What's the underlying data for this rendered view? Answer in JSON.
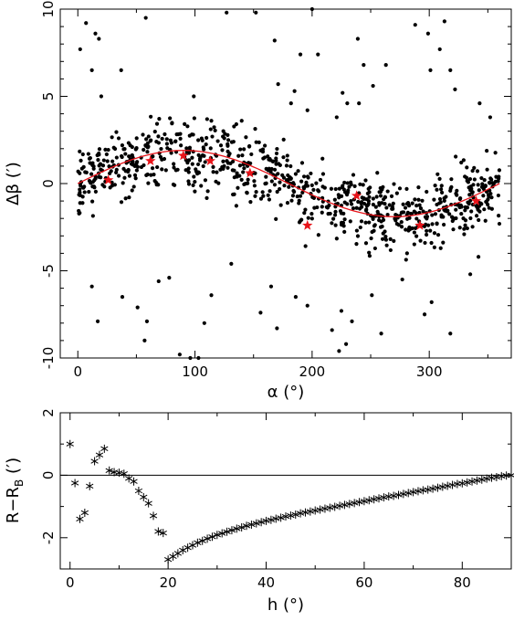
{
  "chart_data": [
    {
      "type": "scatter",
      "title": "",
      "xlabel": "α (°)",
      "ylabel": "Δβ (′)",
      "xlim": [
        -15,
        370
      ],
      "ylim": [
        -10,
        10
      ],
      "xticks": [
        0,
        100,
        200,
        300
      ],
      "yticks": [
        -10,
        -5,
        0,
        5,
        10
      ],
      "grid": false,
      "legend": "none",
      "series": [
        {
          "kind": "scatter-dots",
          "color": "#000000",
          "note_values": "dense cloud of ~900 points following the sine trend with spread",
          "values": [
            [
              2,
              7.7
            ],
            [
              7,
              9.2
            ],
            [
              12,
              6.5
            ],
            [
              15,
              8.6
            ],
            [
              18,
              8.3
            ],
            [
              20,
              5.0
            ],
            [
              37,
              6.5
            ],
            [
              58,
              9.5
            ],
            [
              99,
              5.0
            ],
            [
              127,
              9.8
            ],
            [
              152,
              9.8
            ],
            [
              168,
              8.2
            ],
            [
              171,
              5.7
            ],
            [
              182,
              4.6
            ],
            [
              185,
              5.3
            ],
            [
              190,
              7.4
            ],
            [
              196,
              4.2
            ],
            [
              200,
              10.0
            ],
            [
              205,
              7.4
            ],
            [
              221,
              3.8
            ],
            [
              226,
              5.2
            ],
            [
              230,
              4.6
            ],
            [
              239,
              8.3
            ],
            [
              240,
              4.6
            ],
            [
              244,
              6.8
            ],
            [
              252,
              5.6
            ],
            [
              263,
              6.8
            ],
            [
              288,
              9.1
            ],
            [
              299,
              8.6
            ],
            [
              301,
              6.5
            ],
            [
              309,
              7.7
            ],
            [
              313,
              9.3
            ],
            [
              318,
              6.5
            ],
            [
              322,
              5.4
            ],
            [
              343,
              4.6
            ],
            [
              352,
              3.8
            ],
            [
              12,
              -5.9
            ],
            [
              17,
              -7.9
            ],
            [
              38,
              -6.5
            ],
            [
              51,
              -7.1
            ],
            [
              59,
              -7.9
            ],
            [
              69,
              -5.6
            ],
            [
              78,
              -5.4
            ],
            [
              87,
              -9.8
            ],
            [
              96,
              -10.0
            ],
            [
              108,
              -8.0
            ],
            [
              114,
              -6.4
            ],
            [
              131,
              -4.6
            ],
            [
              156,
              -7.4
            ],
            [
              165,
              -5.9
            ],
            [
              170,
              -8.3
            ],
            [
              186,
              -6.5
            ],
            [
              196,
              -7.0
            ],
            [
              217,
              -8.4
            ],
            [
              223,
              -9.6
            ],
            [
              225,
              -7.3
            ],
            [
              229,
              -9.2
            ],
            [
              234,
              -7.9
            ],
            [
              251,
              -6.4
            ],
            [
              259,
              -8.6
            ],
            [
              277,
              -5.5
            ],
            [
              296,
              -7.5
            ],
            [
              302,
              -6.8
            ],
            [
              318,
              -8.6
            ],
            [
              335,
              -5.2
            ],
            [
              342,
              -4.2
            ],
            [
              103,
              -10.0
            ],
            [
              57,
              -9.0
            ]
          ]
        },
        {
          "kind": "model-curve",
          "color": "#e8141a",
          "amplitude": 1.9,
          "values": [
            [
              0,
              0.0
            ],
            [
              30,
              0.95
            ],
            [
              60,
              1.65
            ],
            [
              90,
              1.9
            ],
            [
              120,
              1.65
            ],
            [
              150,
              0.95
            ],
            [
              180,
              0.0
            ],
            [
              210,
              -0.95
            ],
            [
              240,
              -1.65
            ],
            [
              270,
              -1.9
            ],
            [
              300,
              -1.65
            ],
            [
              330,
              -0.95
            ],
            [
              360,
              0.0
            ]
          ]
        },
        {
          "kind": "red-stars",
          "color": "#e8141a",
          "values": [
            [
              26,
              0.2
            ],
            [
              62,
              1.3
            ],
            [
              90,
              1.6
            ],
            [
              113,
              1.3
            ],
            [
              147,
              0.6
            ],
            [
              196,
              -2.4
            ],
            [
              238,
              -0.7
            ],
            [
              292,
              -2.4
            ],
            [
              340,
              -1.0
            ]
          ]
        }
      ]
    },
    {
      "type": "scatter",
      "title": "",
      "xlabel": "h (°)",
      "ylabel": "R−R",
      "ylabel_sub": "B",
      "ylabel_unit": " (′)",
      "xlim": [
        -2,
        90
      ],
      "ylim": [
        -3.0,
        2.0
      ],
      "xticks": [
        0,
        20,
        40,
        60,
        80
      ],
      "yticks": [
        -2,
        0,
        2
      ],
      "grid": false,
      "legend": "none",
      "reference_line": 0,
      "series": [
        {
          "kind": "asterisks",
          "color": "#000000",
          "values": [
            [
              0,
              1.0
            ],
            [
              1,
              -0.25
            ],
            [
              2,
              -1.4
            ],
            [
              3,
              -1.2
            ],
            [
              4,
              -0.35
            ],
            [
              5,
              0.45
            ],
            [
              6,
              0.65
            ],
            [
              7,
              0.85
            ],
            [
              8,
              0.15
            ],
            [
              9,
              0.1
            ],
            [
              10,
              0.08
            ],
            [
              11,
              0.05
            ],
            [
              12,
              -0.1
            ],
            [
              13,
              -0.2
            ],
            [
              14,
              -0.5
            ],
            [
              15,
              -0.7
            ],
            [
              16,
              -0.9
            ],
            [
              17,
              -1.3
            ],
            [
              18,
              -1.8
            ],
            [
              19,
              -1.85
            ],
            [
              20,
              -2.7
            ],
            [
              21,
              -2.6
            ],
            [
              22,
              -2.5
            ],
            [
              23,
              -2.4
            ],
            [
              24,
              -2.32
            ],
            [
              25,
              -2.24
            ],
            [
              26,
              -2.16
            ],
            [
              27,
              -2.1
            ],
            [
              28,
              -2.03
            ],
            [
              29,
              -1.97
            ],
            [
              30,
              -1.91
            ],
            [
              31,
              -1.86
            ],
            [
              32,
              -1.81
            ],
            [
              33,
              -1.76
            ],
            [
              34,
              -1.71
            ],
            [
              35,
              -1.67
            ],
            [
              36,
              -1.62
            ],
            [
              37,
              -1.58
            ],
            [
              38,
              -1.54
            ],
            [
              39,
              -1.5
            ],
            [
              40,
              -1.46
            ],
            [
              41,
              -1.43
            ],
            [
              42,
              -1.39
            ],
            [
              43,
              -1.36
            ],
            [
              44,
              -1.32
            ],
            [
              45,
              -1.29
            ],
            [
              46,
              -1.26
            ],
            [
              47,
              -1.22
            ],
            [
              48,
              -1.19
            ],
            [
              49,
              -1.16
            ],
            [
              50,
              -1.13
            ],
            [
              51,
              -1.1
            ],
            [
              52,
              -1.07
            ],
            [
              53,
              -1.04
            ],
            [
              54,
              -1.01
            ],
            [
              55,
              -0.98
            ],
            [
              56,
              -0.95
            ],
            [
              57,
              -0.92
            ],
            [
              58,
              -0.89
            ],
            [
              59,
              -0.86
            ],
            [
              60,
              -0.83
            ],
            [
              61,
              -0.8
            ],
            [
              62,
              -0.77
            ],
            [
              63,
              -0.74
            ],
            [
              64,
              -0.71
            ],
            [
              65,
              -0.68
            ],
            [
              66,
              -0.66
            ],
            [
              67,
              -0.63
            ],
            [
              68,
              -0.6
            ],
            [
              69,
              -0.57
            ],
            [
              70,
              -0.54
            ],
            [
              71,
              -0.51
            ],
            [
              72,
              -0.48
            ],
            [
              73,
              -0.46
            ],
            [
              74,
              -0.43
            ],
            [
              75,
              -0.4
            ],
            [
              76,
              -0.37
            ],
            [
              77,
              -0.34
            ],
            [
              78,
              -0.31
            ],
            [
              79,
              -0.28
            ],
            [
              80,
              -0.26
            ],
            [
              81,
              -0.23
            ],
            [
              82,
              -0.2
            ],
            [
              83,
              -0.17
            ],
            [
              84,
              -0.14
            ],
            [
              85,
              -0.11
            ],
            [
              86,
              -0.08
            ],
            [
              87,
              -0.06
            ],
            [
              88,
              -0.03
            ],
            [
              89,
              -0.01
            ],
            [
              90,
              0.0
            ]
          ]
        }
      ]
    }
  ]
}
